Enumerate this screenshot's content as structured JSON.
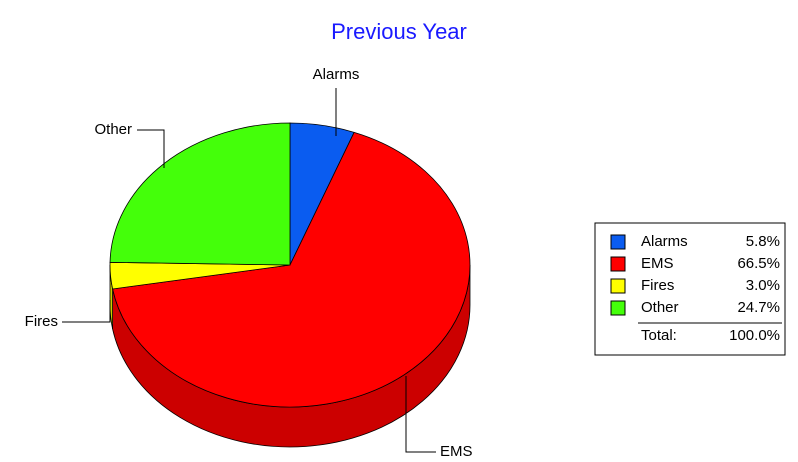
{
  "chart_data": {
    "type": "pie",
    "title": "Previous Year",
    "categories": [
      "Alarms",
      "EMS",
      "Fires",
      "Other"
    ],
    "values": [
      5.8,
      66.5,
      3.0,
      24.7
    ],
    "value_labels": [
      "5.8%",
      "66.5%",
      "3.0%",
      "24.7%"
    ],
    "colors": [
      "#0a5cf0",
      "#ff0000",
      "#ffff00",
      "#44ff0a"
    ],
    "total_label": "Total:",
    "total": {
      "value": 100,
      "label": "100.0%"
    },
    "legend": "right"
  }
}
